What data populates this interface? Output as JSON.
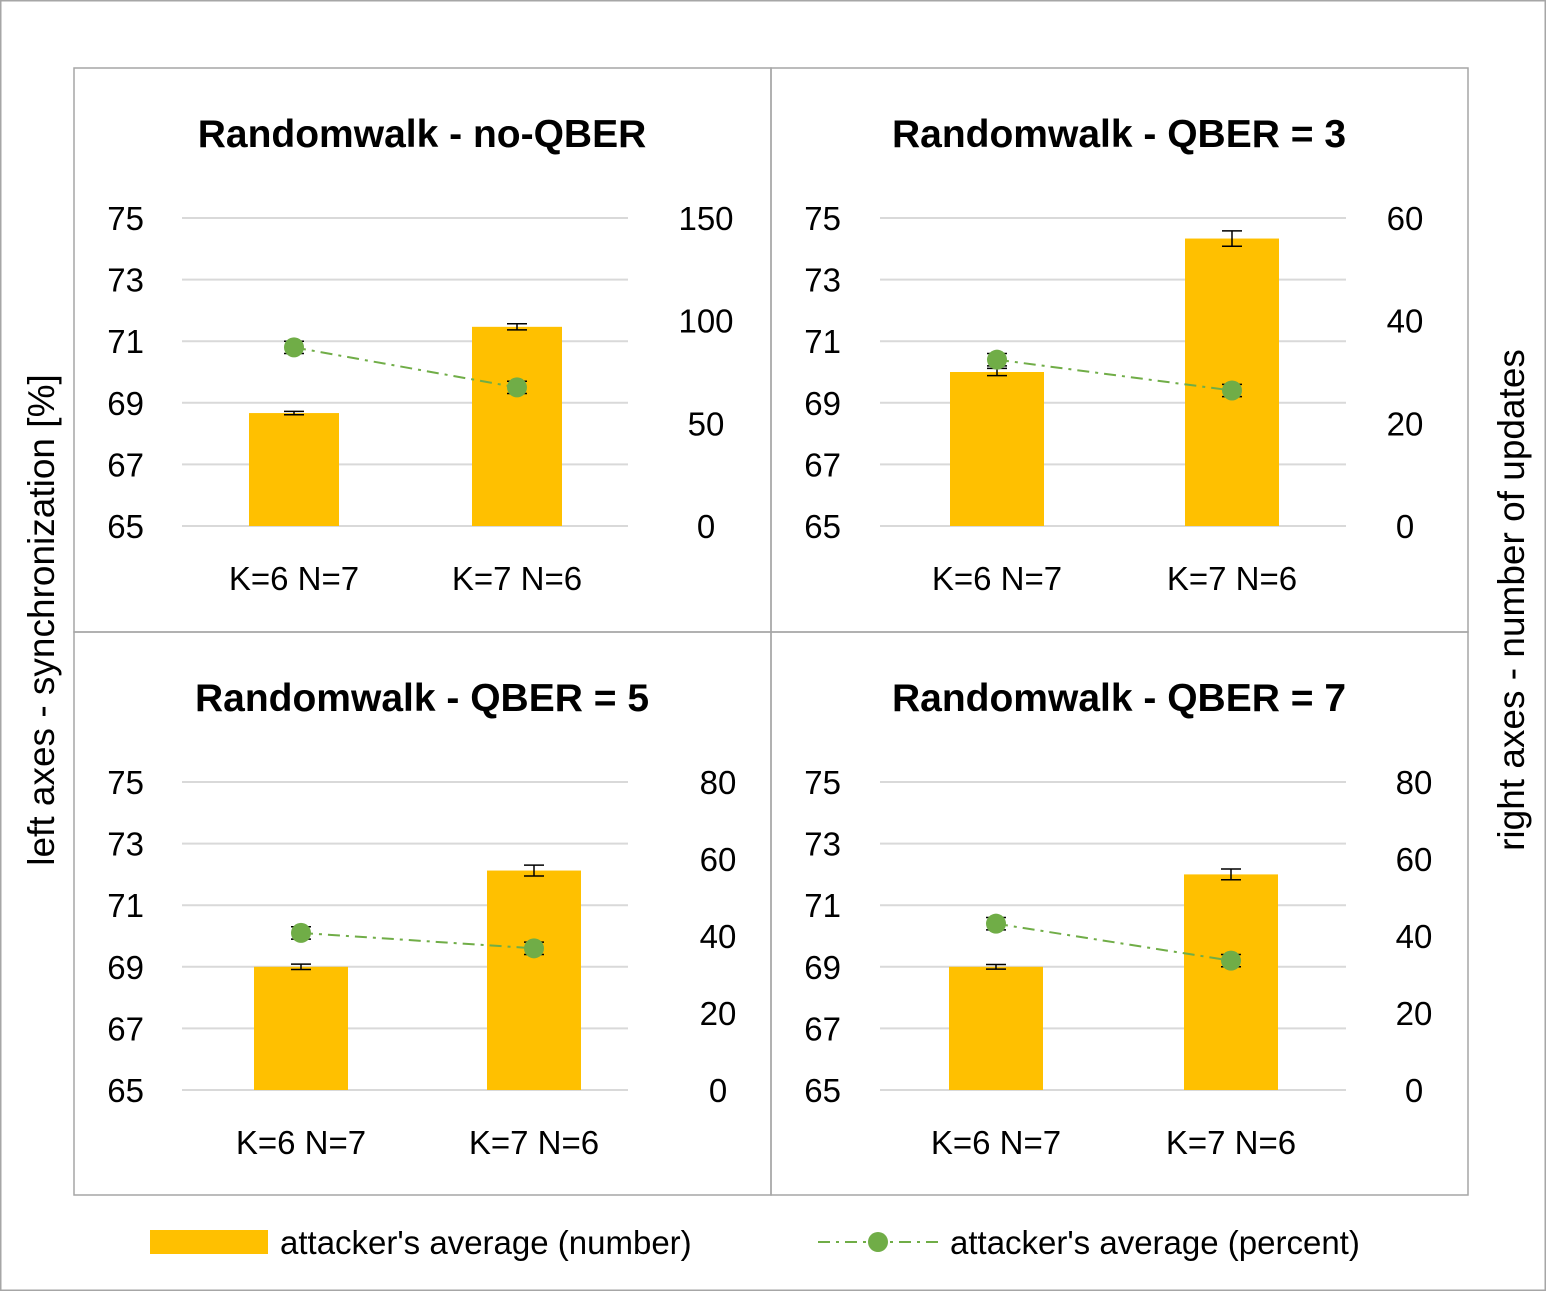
{
  "figure": {
    "left_axis_label": "left axes - synchronization [%]",
    "right_axis_label": "right axes - number of updates",
    "legend": {
      "bar_label": "attacker's average (number)",
      "line_label": "attacker's average (percent)"
    },
    "colors": {
      "bar": "#FFC000",
      "line": "#70AD47",
      "grid": "#D9D9D9",
      "border": "#A6A6A6",
      "text": "#000000"
    }
  },
  "chart_data": [
    {
      "type": "bar",
      "title": "Randomwalk - no-QBER",
      "categories": [
        "K=6 N=7",
        "K=7 N=6"
      ],
      "left_axis": {
        "range": [
          65,
          75
        ],
        "ticks": [
          65,
          67,
          69,
          71,
          73,
          75
        ]
      },
      "right_axis": {
        "range": [
          0,
          150
        ],
        "ticks": [
          0,
          50,
          100,
          150
        ]
      },
      "series": [
        {
          "name": "attacker's average (number)",
          "kind": "bar",
          "axis": "right",
          "values": [
            55,
            97
          ],
          "errors": [
            0.8,
            1.5
          ]
        },
        {
          "name": "attacker's average (percent)",
          "kind": "line",
          "axis": "left",
          "values": [
            70.8,
            69.5
          ],
          "errors": [
            0.2,
            0.2
          ]
        }
      ]
    },
    {
      "type": "bar",
      "title": "Randomwalk - QBER = 3",
      "categories": [
        "K=6 N=7",
        "K=7 N=6"
      ],
      "left_axis": {
        "range": [
          65,
          75
        ],
        "ticks": [
          65,
          67,
          69,
          71,
          73,
          75
        ]
      },
      "right_axis": {
        "range": [
          0,
          60
        ],
        "ticks": [
          0,
          20,
          40,
          60
        ]
      },
      "series": [
        {
          "name": "attacker's average (number)",
          "kind": "bar",
          "axis": "right",
          "values": [
            30,
            56
          ],
          "errors": [
            0.7,
            1.5
          ]
        },
        {
          "name": "attacker's average (percent)",
          "kind": "line",
          "axis": "left",
          "values": [
            70.4,
            69.4
          ],
          "errors": [
            0.2,
            0.2
          ]
        }
      ]
    },
    {
      "type": "bar",
      "title": "Randomwalk - QBER = 5",
      "categories": [
        "K=6 N=7",
        "K=7 N=6"
      ],
      "left_axis": {
        "range": [
          65,
          75
        ],
        "ticks": [
          65,
          67,
          69,
          71,
          73,
          75
        ]
      },
      "right_axis": {
        "range": [
          0,
          80
        ],
        "ticks": [
          0,
          20,
          40,
          60,
          80
        ]
      },
      "series": [
        {
          "name": "attacker's average (number)",
          "kind": "bar",
          "axis": "right",
          "values": [
            32,
            57
          ],
          "errors": [
            0.7,
            1.4
          ]
        },
        {
          "name": "attacker's average (percent)",
          "kind": "line",
          "axis": "left",
          "values": [
            70.1,
            69.6
          ],
          "errors": [
            0.2,
            0.2
          ]
        }
      ]
    },
    {
      "type": "bar",
      "title": "Randomwalk - QBER = 7",
      "categories": [
        "K=6 N=7",
        "K=7 N=6"
      ],
      "left_axis": {
        "range": [
          65,
          75
        ],
        "ticks": [
          65,
          67,
          69,
          71,
          73,
          75
        ]
      },
      "right_axis": {
        "range": [
          0,
          80
        ],
        "ticks": [
          0,
          20,
          40,
          60,
          80
        ]
      },
      "series": [
        {
          "name": "attacker's average (number)",
          "kind": "bar",
          "axis": "right",
          "values": [
            32,
            56
          ],
          "errors": [
            0.6,
            1.4
          ]
        },
        {
          "name": "attacker's average (percent)",
          "kind": "line",
          "axis": "left",
          "values": [
            70.4,
            69.2
          ],
          "errors": [
            0.2,
            0.2
          ]
        }
      ]
    }
  ]
}
